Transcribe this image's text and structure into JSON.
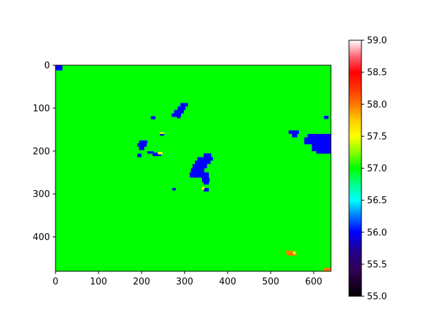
{
  "chart_data": {
    "type": "heatmap",
    "title": "",
    "xlabel": "",
    "ylabel": "",
    "xlim": [
      0,
      640
    ],
    "ylim": [
      480,
      0
    ],
    "x_ticks": [
      "0",
      "100",
      "200",
      "300",
      "400",
      "500",
      "600"
    ],
    "y_ticks": [
      "0",
      "100",
      "200",
      "300",
      "400"
    ],
    "colormap": "gist_ncar",
    "colorbar": {
      "range": [
        55.0,
        59.0
      ],
      "tick_labels": [
        "55.0",
        "55.5",
        "56.0",
        "56.5",
        "57.0",
        "57.5",
        "58.0",
        "58.5",
        "59.0"
      ],
      "stops": [
        {
          "value": 55.0,
          "color": "#000000"
        },
        {
          "value": 55.4,
          "color": "#330055"
        },
        {
          "value": 55.7,
          "color": "#220088"
        },
        {
          "value": 56.0,
          "color": "#0000ff"
        },
        {
          "value": 56.25,
          "color": "#0077ff"
        },
        {
          "value": 56.5,
          "color": "#00ffff"
        },
        {
          "value": 56.75,
          "color": "#00ff88"
        },
        {
          "value": 57.0,
          "color": "#00ff00"
        },
        {
          "value": 57.25,
          "color": "#88ff00"
        },
        {
          "value": 57.5,
          "color": "#ffff00"
        },
        {
          "value": 57.75,
          "color": "#ffcc00"
        },
        {
          "value": 58.0,
          "color": "#ff7700"
        },
        {
          "value": 58.25,
          "color": "#ff3300"
        },
        {
          "value": 58.5,
          "color": "#ff0000"
        },
        {
          "value": 58.75,
          "color": "#ff6677"
        },
        {
          "value": 59.0,
          "color": "#ffffff"
        }
      ]
    },
    "background_value": 57.0,
    "regions": [
      {
        "value": 56.0,
        "rects": [
          [
            0,
            0,
            16,
            12
          ]
        ]
      },
      {
        "value": 56.0,
        "rects": [
          [
            290,
            88,
            308,
            96
          ],
          [
            284,
            96,
            302,
            104
          ],
          [
            276,
            104,
            298,
            112
          ],
          [
            270,
            112,
            292,
            120
          ],
          [
            282,
            120,
            290,
            124
          ]
        ]
      },
      {
        "value": 56.0,
        "rects": [
          [
            222,
            119,
            232,
            126
          ]
        ]
      },
      {
        "value": 56.0,
        "rects": [
          [
            194,
            175,
            214,
            182
          ],
          [
            190,
            182,
            212,
            190
          ],
          [
            194,
            190,
            206,
            198
          ],
          [
            190,
            206,
            200,
            214
          ]
        ]
      },
      {
        "value": 56.0,
        "rects": [
          [
            214,
            200,
            228,
            206
          ],
          [
            226,
            204,
            246,
            212
          ]
        ]
      },
      {
        "value": 57.5,
        "rects": [
          [
            238,
            202,
            248,
            208
          ]
        ]
      },
      {
        "value": 57.5,
        "rects": [
          [
            243,
            156,
            252,
            160
          ]
        ]
      },
      {
        "value": 56.0,
        "rects": [
          [
            243,
            160,
            252,
            164
          ]
        ]
      },
      {
        "value": 56.0,
        "rects": [
          [
            344,
            205,
            362,
            214
          ],
          [
            330,
            214,
            366,
            222
          ],
          [
            324,
            222,
            360,
            230
          ],
          [
            318,
            230,
            352,
            240
          ],
          [
            314,
            240,
            346,
            250
          ],
          [
            312,
            250,
            356,
            262
          ],
          [
            340,
            262,
            358,
            272
          ],
          [
            344,
            272,
            356,
            278
          ],
          [
            344,
            286,
            356,
            294
          ]
        ]
      },
      {
        "value": 57.5,
        "rects": [
          [
            340,
            284,
            346,
            290
          ]
        ]
      },
      {
        "value": 56.0,
        "rects": [
          [
            272,
            286,
            280,
            292
          ]
        ]
      },
      {
        "value": 56.0,
        "rects": [
          [
            542,
            152,
            566,
            160
          ],
          [
            550,
            160,
            562,
            168
          ]
        ]
      },
      {
        "value": 56.0,
        "rects": [
          [
            586,
            160,
            640,
            168
          ],
          [
            578,
            168,
            640,
            184
          ],
          [
            596,
            184,
            640,
            200
          ],
          [
            606,
            200,
            640,
            206
          ]
        ]
      },
      {
        "value": 56.0,
        "rects": [
          [
            624,
            118,
            634,
            125
          ]
        ]
      },
      {
        "value": 58.0,
        "rects": [
          [
            536,
            432,
            552,
            440
          ],
          [
            540,
            440,
            560,
            444
          ]
        ]
      },
      {
        "value": 57.5,
        "rects": [
          [
            552,
            434,
            558,
            440
          ]
        ]
      },
      {
        "value": 58.0,
        "rects": [
          [
            624,
            472,
            640,
            480
          ]
        ]
      }
    ]
  }
}
